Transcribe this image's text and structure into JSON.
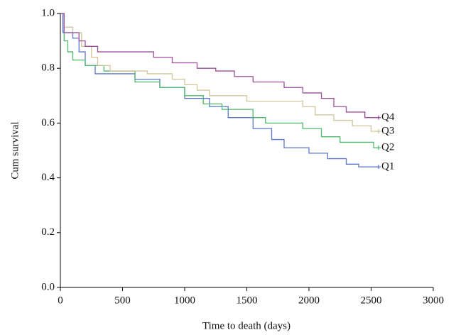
{
  "chart_data": {
    "type": "line",
    "step": "post",
    "xlabel": "Time to death (days)",
    "ylabel": "Cum survival",
    "xlim": [
      0,
      3000
    ],
    "xticks": [
      0,
      500,
      1000,
      1500,
      2000,
      2500,
      3000
    ],
    "ylim": [
      0,
      1
    ],
    "yticks": [
      {
        "value": 0,
        "label": "0.0"
      },
      {
        "value": 0.2,
        "label": "0.2"
      },
      {
        "value": 0.4,
        "label": "0.4"
      },
      {
        "value": 0.6,
        "label": "0.6"
      },
      {
        "value": 0.8,
        "label": "0.8"
      },
      {
        "value": 1,
        "label": "1.0"
      }
    ],
    "series": [
      {
        "name": "Q1",
        "color": "#5b77c9",
        "x": [
          0,
          20,
          100,
          150,
          200,
          280,
          600,
          800,
          1000,
          1200,
          1350,
          1550,
          1700,
          1800,
          2000,
          2150,
          2300,
          2400,
          2560
        ],
        "values": [
          1.0,
          0.93,
          0.91,
          0.86,
          0.81,
          0.78,
          0.76,
          0.73,
          0.69,
          0.66,
          0.62,
          0.58,
          0.54,
          0.51,
          0.49,
          0.47,
          0.45,
          0.44,
          0.44
        ]
      },
      {
        "name": "Q2",
        "color": "#4fb86a",
        "x": [
          0,
          30,
          60,
          100,
          200,
          350,
          600,
          800,
          1000,
          1150,
          1300,
          1550,
          1650,
          1950,
          2100,
          2250,
          2520,
          2560
        ],
        "values": [
          1.0,
          0.9,
          0.86,
          0.83,
          0.81,
          0.79,
          0.75,
          0.73,
          0.7,
          0.67,
          0.65,
          0.62,
          0.6,
          0.58,
          0.55,
          0.53,
          0.51,
          0.51
        ]
      },
      {
        "name": "Q3",
        "color": "#cfc79a",
        "x": [
          0,
          30,
          100,
          170,
          250,
          300,
          400,
          700,
          900,
          1000,
          1100,
          1200,
          1500,
          1950,
          2050,
          2200,
          2350,
          2500,
          2560
        ],
        "values": [
          1.0,
          0.95,
          0.93,
          0.88,
          0.84,
          0.81,
          0.79,
          0.78,
          0.76,
          0.74,
          0.72,
          0.7,
          0.68,
          0.66,
          0.63,
          0.61,
          0.59,
          0.57,
          0.57
        ]
      },
      {
        "name": "Q4",
        "color": "#9b4f9b",
        "x": [
          0,
          30,
          150,
          200,
          300,
          700,
          750,
          900,
          1100,
          1250,
          1400,
          1550,
          1800,
          1950,
          2100,
          2200,
          2300,
          2450,
          2560
        ],
        "values": [
          1.0,
          0.93,
          0.9,
          0.88,
          0.86,
          0.86,
          0.84,
          0.82,
          0.8,
          0.79,
          0.77,
          0.75,
          0.73,
          0.71,
          0.69,
          0.66,
          0.64,
          0.62,
          0.62
        ]
      }
    ]
  }
}
